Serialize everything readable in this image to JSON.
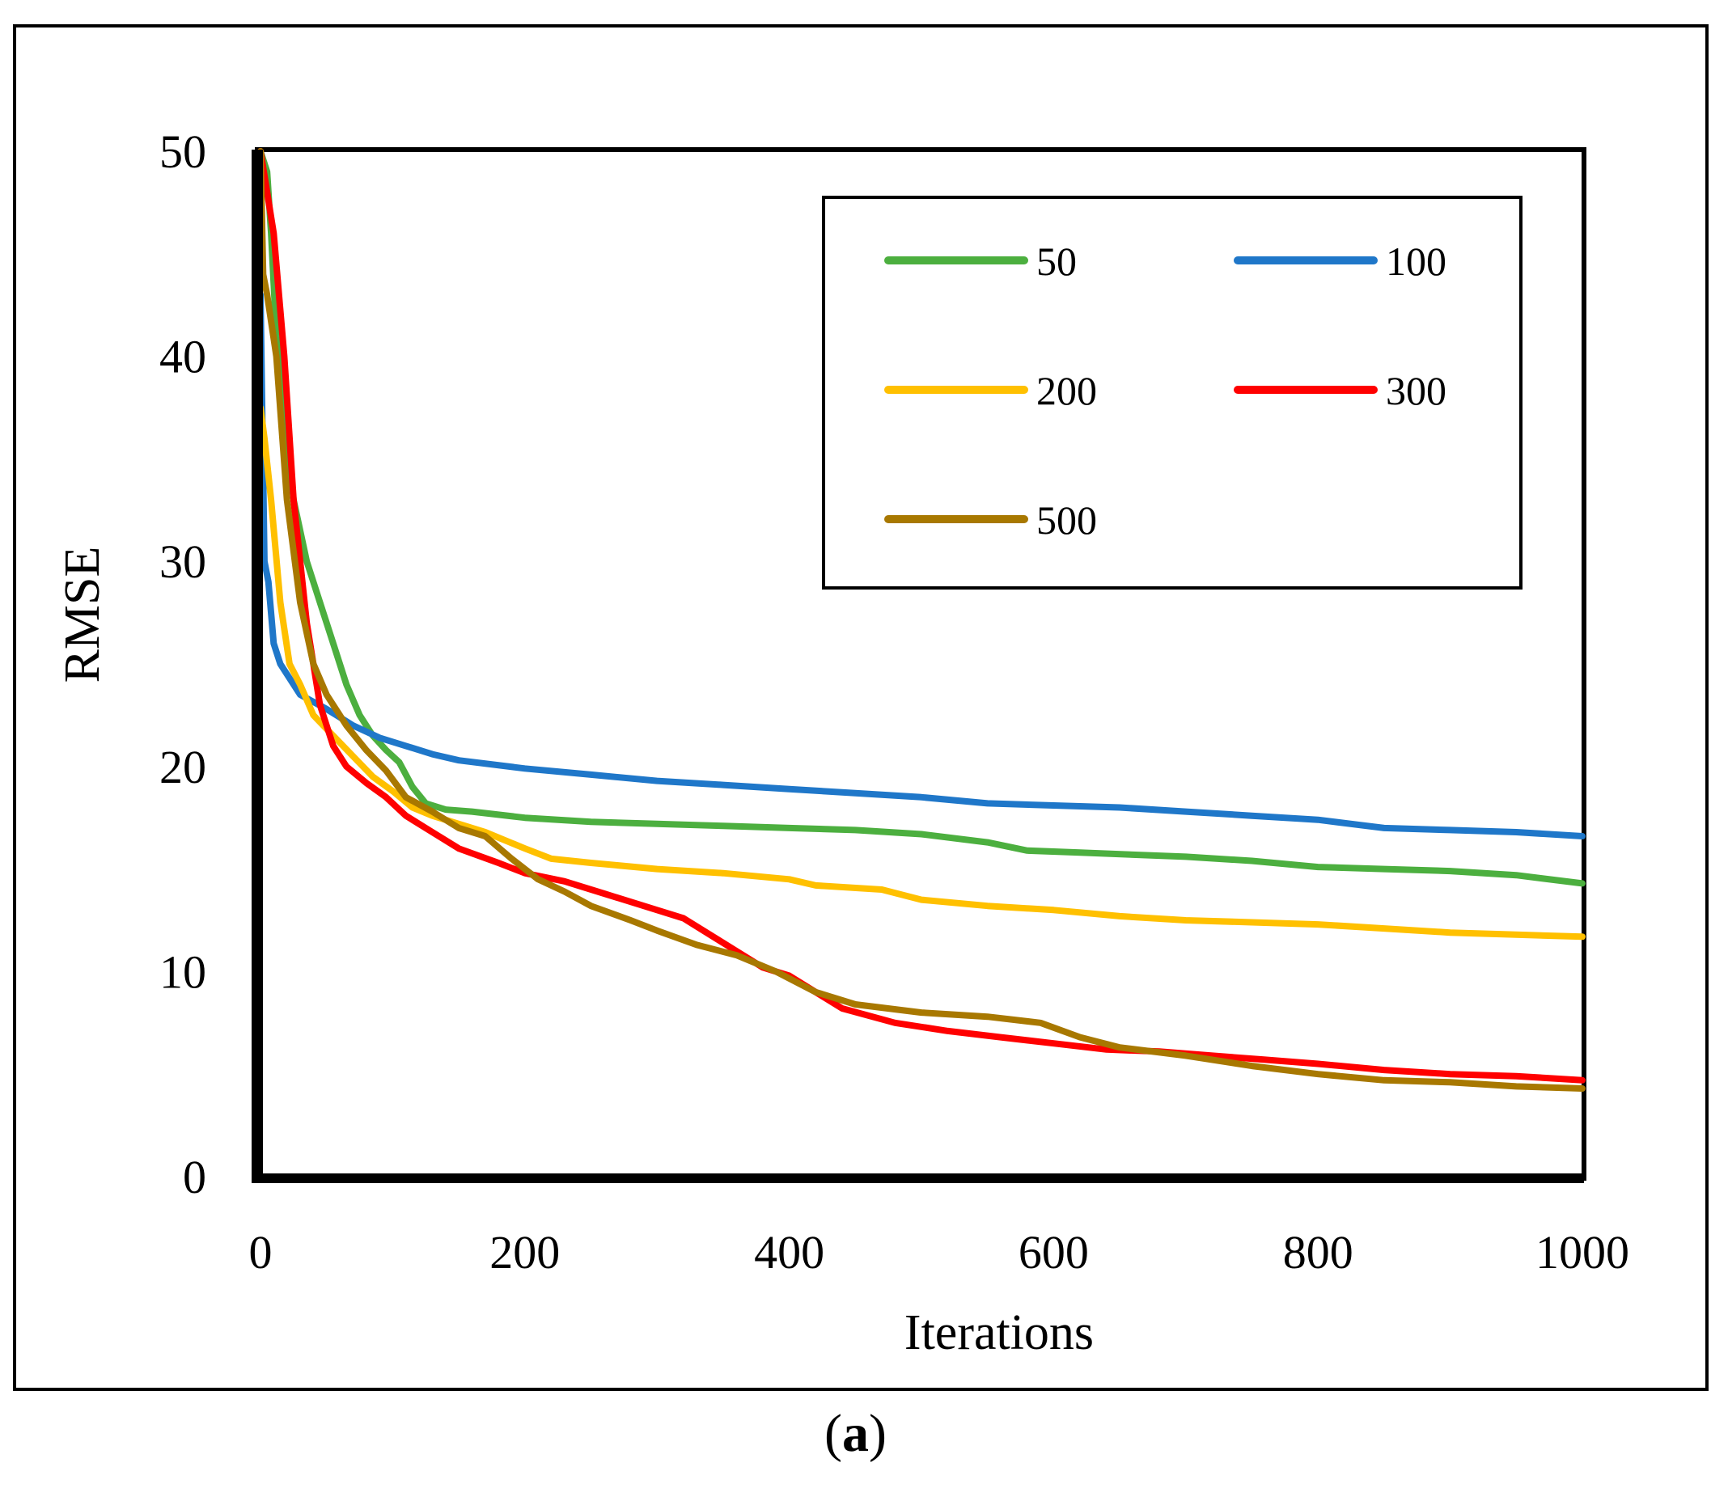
{
  "caption": {
    "open": "(",
    "letter": "a",
    "close": ")"
  },
  "chart_data": {
    "type": "line",
    "title": "",
    "xlabel": "Iterations",
    "ylabel": "RMSE",
    "xlim": [
      0,
      1000
    ],
    "ylim": [
      0,
      50
    ],
    "xticks": [
      0,
      200,
      400,
      600,
      800,
      1000
    ],
    "yticks": [
      0,
      10,
      20,
      30,
      40,
      50
    ],
    "grid": false,
    "legend_position": "top-right",
    "series": [
      {
        "name": "50",
        "color": "#4caf3f",
        "points": [
          [
            0,
            50
          ],
          [
            5,
            49
          ],
          [
            8,
            46
          ],
          [
            12,
            41
          ],
          [
            18,
            37
          ],
          [
            25,
            33
          ],
          [
            35,
            30
          ],
          [
            45,
            28
          ],
          [
            55,
            26
          ],
          [
            65,
            24
          ],
          [
            75,
            22.5
          ],
          [
            85,
            21.5
          ],
          [
            95,
            20.8
          ],
          [
            105,
            20.2
          ],
          [
            115,
            19
          ],
          [
            125,
            18.2
          ],
          [
            140,
            17.9
          ],
          [
            160,
            17.8
          ],
          [
            200,
            17.5
          ],
          [
            250,
            17.3
          ],
          [
            300,
            17.2
          ],
          [
            350,
            17.1
          ],
          [
            400,
            17.0
          ],
          [
            450,
            16.9
          ],
          [
            500,
            16.7
          ],
          [
            550,
            16.3
          ],
          [
            580,
            15.9
          ],
          [
            620,
            15.8
          ],
          [
            700,
            15.6
          ],
          [
            750,
            15.4
          ],
          [
            800,
            15.1
          ],
          [
            850,
            15.0
          ],
          [
            900,
            14.9
          ],
          [
            950,
            14.7
          ],
          [
            1000,
            14.3
          ]
        ]
      },
      {
        "name": "100",
        "color": "#1f77c9",
        "points": [
          [
            0,
            43
          ],
          [
            3,
            30
          ],
          [
            6,
            29
          ],
          [
            10,
            26
          ],
          [
            15,
            25
          ],
          [
            20,
            24.5
          ],
          [
            30,
            23.5
          ],
          [
            50,
            22.8
          ],
          [
            70,
            22
          ],
          [
            90,
            21.4
          ],
          [
            110,
            21
          ],
          [
            130,
            20.6
          ],
          [
            150,
            20.3
          ],
          [
            200,
            19.9
          ],
          [
            250,
            19.6
          ],
          [
            300,
            19.3
          ],
          [
            350,
            19.1
          ],
          [
            400,
            18.9
          ],
          [
            450,
            18.7
          ],
          [
            500,
            18.5
          ],
          [
            550,
            18.2
          ],
          [
            600,
            18.1
          ],
          [
            650,
            18.0
          ],
          [
            700,
            17.8
          ],
          [
            750,
            17.6
          ],
          [
            800,
            17.4
          ],
          [
            850,
            17.0
          ],
          [
            900,
            16.9
          ],
          [
            950,
            16.8
          ],
          [
            1000,
            16.6
          ]
        ]
      },
      {
        "name": "200",
        "color": "#ffc000",
        "points": [
          [
            0,
            37.5
          ],
          [
            3,
            36
          ],
          [
            8,
            33
          ],
          [
            15,
            28
          ],
          [
            22,
            25
          ],
          [
            30,
            24
          ],
          [
            40,
            22.5
          ],
          [
            55,
            21.5
          ],
          [
            70,
            20.5
          ],
          [
            85,
            19.5
          ],
          [
            100,
            18.8
          ],
          [
            115,
            18.0
          ],
          [
            130,
            17.6
          ],
          [
            150,
            17.2
          ],
          [
            170,
            16.8
          ],
          [
            200,
            16.0
          ],
          [
            220,
            15.5
          ],
          [
            250,
            15.3
          ],
          [
            300,
            15.0
          ],
          [
            350,
            14.8
          ],
          [
            400,
            14.5
          ],
          [
            420,
            14.2
          ],
          [
            470,
            14.0
          ],
          [
            500,
            13.5
          ],
          [
            550,
            13.2
          ],
          [
            600,
            13.0
          ],
          [
            650,
            12.7
          ],
          [
            700,
            12.5
          ],
          [
            750,
            12.4
          ],
          [
            800,
            12.3
          ],
          [
            850,
            12.1
          ],
          [
            900,
            11.9
          ],
          [
            950,
            11.8
          ],
          [
            1000,
            11.7
          ]
        ]
      },
      {
        "name": "300",
        "color": "#ff0000",
        "points": [
          [
            0,
            50
          ],
          [
            5,
            48
          ],
          [
            10,
            46
          ],
          [
            18,
            40
          ],
          [
            25,
            33
          ],
          [
            35,
            27
          ],
          [
            45,
            23
          ],
          [
            55,
            21
          ],
          [
            65,
            20
          ],
          [
            80,
            19.2
          ],
          [
            95,
            18.5
          ],
          [
            110,
            17.6
          ],
          [
            130,
            16.8
          ],
          [
            150,
            16.0
          ],
          [
            180,
            15.3
          ],
          [
            200,
            14.8
          ],
          [
            230,
            14.4
          ],
          [
            260,
            13.8
          ],
          [
            300,
            13.0
          ],
          [
            320,
            12.6
          ],
          [
            340,
            11.8
          ],
          [
            360,
            11.0
          ],
          [
            380,
            10.2
          ],
          [
            400,
            9.8
          ],
          [
            420,
            9.0
          ],
          [
            440,
            8.2
          ],
          [
            480,
            7.5
          ],
          [
            520,
            7.1
          ],
          [
            560,
            6.8
          ],
          [
            600,
            6.5
          ],
          [
            640,
            6.2
          ],
          [
            680,
            6.1
          ],
          [
            720,
            5.9
          ],
          [
            760,
            5.7
          ],
          [
            800,
            5.5
          ],
          [
            850,
            5.2
          ],
          [
            900,
            5.0
          ],
          [
            950,
            4.9
          ],
          [
            1000,
            4.7
          ]
        ]
      },
      {
        "name": "500",
        "color": "#a87800",
        "points": [
          [
            0,
            50
          ],
          [
            2,
            44
          ],
          [
            5,
            43
          ],
          [
            12,
            40
          ],
          [
            20,
            33
          ],
          [
            30,
            28
          ],
          [
            40,
            25
          ],
          [
            50,
            23.5
          ],
          [
            65,
            22
          ],
          [
            80,
            20.8
          ],
          [
            95,
            19.8
          ],
          [
            110,
            18.5
          ],
          [
            130,
            17.8
          ],
          [
            150,
            17.0
          ],
          [
            170,
            16.6
          ],
          [
            190,
            15.5
          ],
          [
            210,
            14.5
          ],
          [
            230,
            13.9
          ],
          [
            250,
            13.2
          ],
          [
            280,
            12.5
          ],
          [
            300,
            12.0
          ],
          [
            330,
            11.3
          ],
          [
            360,
            10.8
          ],
          [
            390,
            10.0
          ],
          [
            420,
            9.0
          ],
          [
            450,
            8.4
          ],
          [
            500,
            8.0
          ],
          [
            550,
            7.8
          ],
          [
            590,
            7.5
          ],
          [
            620,
            6.8
          ],
          [
            650,
            6.3
          ],
          [
            700,
            5.9
          ],
          [
            750,
            5.4
          ],
          [
            800,
            5.0
          ],
          [
            850,
            4.7
          ],
          [
            900,
            4.6
          ],
          [
            950,
            4.4
          ],
          [
            1000,
            4.3
          ]
        ]
      }
    ]
  }
}
